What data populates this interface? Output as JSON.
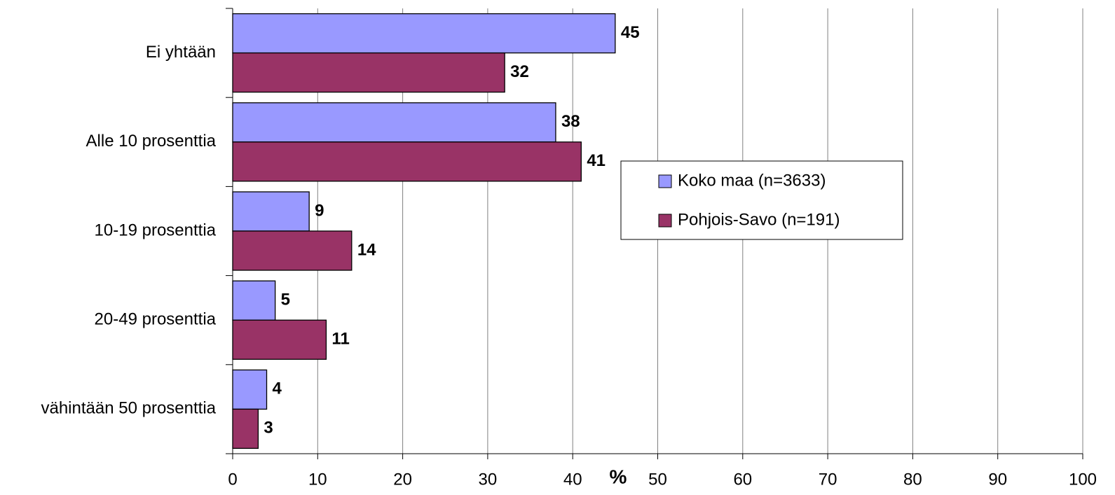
{
  "chart_data": {
    "type": "bar",
    "orientation": "horizontal",
    "categories": [
      "Ei yhtään",
      "Alle 10 prosenttia",
      "10-19 prosenttia",
      "20-49 prosenttia",
      "vähintään 50 prosenttia"
    ],
    "series": [
      {
        "name": "Koko maa (n=3633)",
        "color": "#9999ff",
        "values": [
          45,
          38,
          9,
          5,
          4
        ]
      },
      {
        "name": "Pohjois-Savo (n=191)",
        "color": "#993366",
        "values": [
          32,
          41,
          14,
          11,
          3
        ]
      }
    ],
    "xlabel": "%",
    "xlim": [
      0,
      100
    ],
    "xticks": [
      0,
      10,
      20,
      30,
      40,
      50,
      60,
      70,
      80,
      90,
      100
    ],
    "grid": true,
    "legend": "center"
  }
}
